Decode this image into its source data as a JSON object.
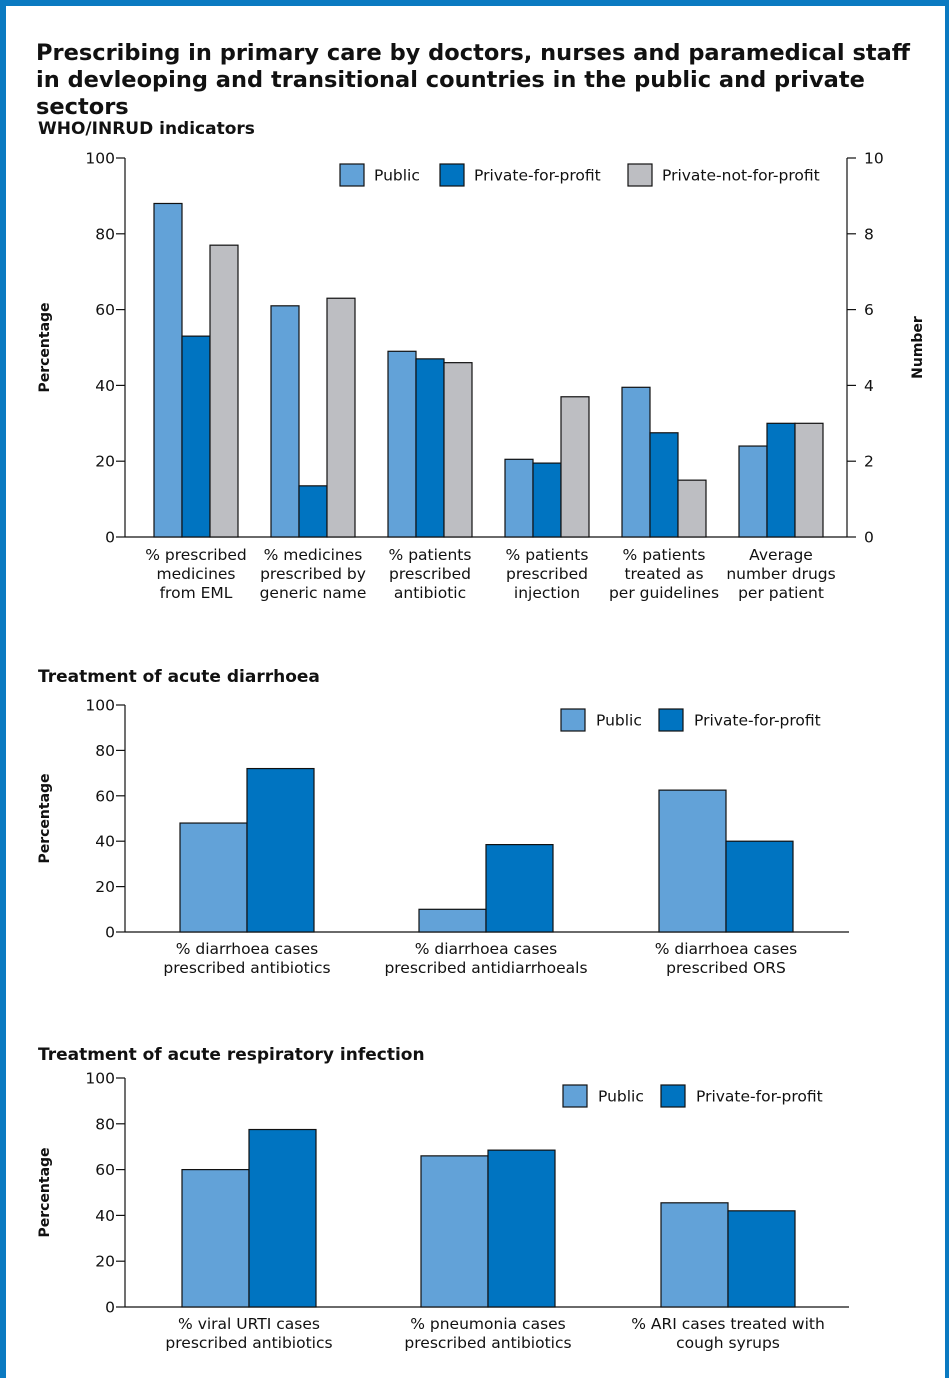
{
  "page": {
    "title": "Prescribing in primary care by doctors, nurses and paramedical staff in devleoping and transitional countries in the public and private sectors"
  },
  "colors": {
    "frame": "#0b7ac1",
    "Public": "#62a2d8",
    "Private-for-profit": "#0074c1",
    "Private-not-for-profit": "#bdbec2",
    "bar_stroke": "#111111"
  },
  "chart_data": [
    {
      "type": "bar",
      "title": "WHO/INRUD indicators",
      "ylabel": "Percentage",
      "y2label": "Number",
      "ylim": [
        0,
        100
      ],
      "y2lim": [
        0,
        10
      ],
      "yticks": [
        0,
        20,
        40,
        60,
        80,
        100
      ],
      "y2ticks": [
        0,
        2,
        4,
        6,
        8,
        10
      ],
      "legend_position": "top-right",
      "categories": [
        [
          "% prescribed",
          "medicines",
          "from EML"
        ],
        [
          "% medicines",
          "prescribed by",
          "generic name"
        ],
        [
          "% patients",
          "prescribed",
          "antibiotic"
        ],
        [
          "% patients",
          "prescribed",
          "injection"
        ],
        [
          "% patients",
          "treated as",
          "per guidelines"
        ],
        [
          "Average",
          "number drugs",
          "per patient"
        ]
      ],
      "series": [
        {
          "name": "Public",
          "values": [
            88,
            61,
            49,
            20.5,
            39.5,
            2.4
          ],
          "axes": [
            "left",
            "left",
            "left",
            "left",
            "left",
            "right"
          ]
        },
        {
          "name": "Private-for-profit",
          "values": [
            53,
            13.5,
            47,
            19.5,
            27.5,
            3.0
          ],
          "axes": [
            "left",
            "left",
            "left",
            "left",
            "left",
            "right"
          ]
        },
        {
          "name": "Private-not-for-profit",
          "values": [
            77,
            63,
            46,
            37,
            15,
            3.0
          ],
          "axes": [
            "left",
            "left",
            "left",
            "left",
            "left",
            "right"
          ]
        }
      ]
    },
    {
      "type": "bar",
      "title": "Treatment of acute diarrhoea",
      "ylabel": "Percentage",
      "ylim": [
        0,
        100
      ],
      "yticks": [
        0,
        20,
        40,
        60,
        80,
        100
      ],
      "legend_position": "top-right",
      "categories": [
        [
          "% diarrhoea cases",
          "prescribed antibiotics"
        ],
        [
          "% diarrhoea cases",
          "prescribed antidiarrhoeals"
        ],
        [
          "% diarrhoea cases",
          "prescribed ORS"
        ]
      ],
      "series": [
        {
          "name": "Public",
          "values": [
            48,
            10,
            62.5
          ]
        },
        {
          "name": "Private-for-profit",
          "values": [
            72,
            38.5,
            40
          ]
        }
      ]
    },
    {
      "type": "bar",
      "title": "Treatment of acute respiratory infection",
      "ylabel": "Percentage",
      "ylim": [
        0,
        100
      ],
      "yticks": [
        0,
        20,
        40,
        60,
        80,
        100
      ],
      "legend_position": "top-right",
      "categories": [
        [
          "% viral URTI cases",
          "prescribed antibiotics"
        ],
        [
          "% pneumonia cases",
          "prescribed antibiotics"
        ],
        [
          "% ARI cases treated with",
          "cough syrups"
        ]
      ],
      "series": [
        {
          "name": "Public",
          "values": [
            60,
            66,
            45.5
          ]
        },
        {
          "name": "Private-for-profit",
          "values": [
            77.5,
            68.5,
            42
          ]
        }
      ]
    }
  ]
}
